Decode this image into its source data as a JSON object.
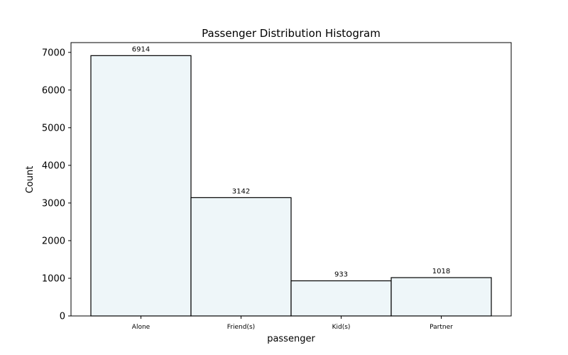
{
  "chart_data": {
    "type": "bar",
    "title": "Passenger Distribution Histogram",
    "xlabel": "passenger",
    "ylabel": "Count",
    "categories": [
      "Alone",
      "Friend(s)",
      "Kid(s)",
      "Partner"
    ],
    "values": [
      6914,
      3142,
      933,
      1018
    ],
    "data_labels": [
      "6914",
      "3142",
      "933",
      "1018"
    ],
    "yticks": [
      0,
      1000,
      2000,
      3000,
      4000,
      5000,
      6000,
      7000
    ],
    "ytick_labels": [
      "0",
      "1000",
      "2000",
      "3000",
      "4000",
      "5000",
      "6000",
      "7000"
    ],
    "ylim": [
      0,
      7260
    ],
    "grid": false,
    "bar_color": "#eef6f9",
    "edge_color": "#000000"
  }
}
